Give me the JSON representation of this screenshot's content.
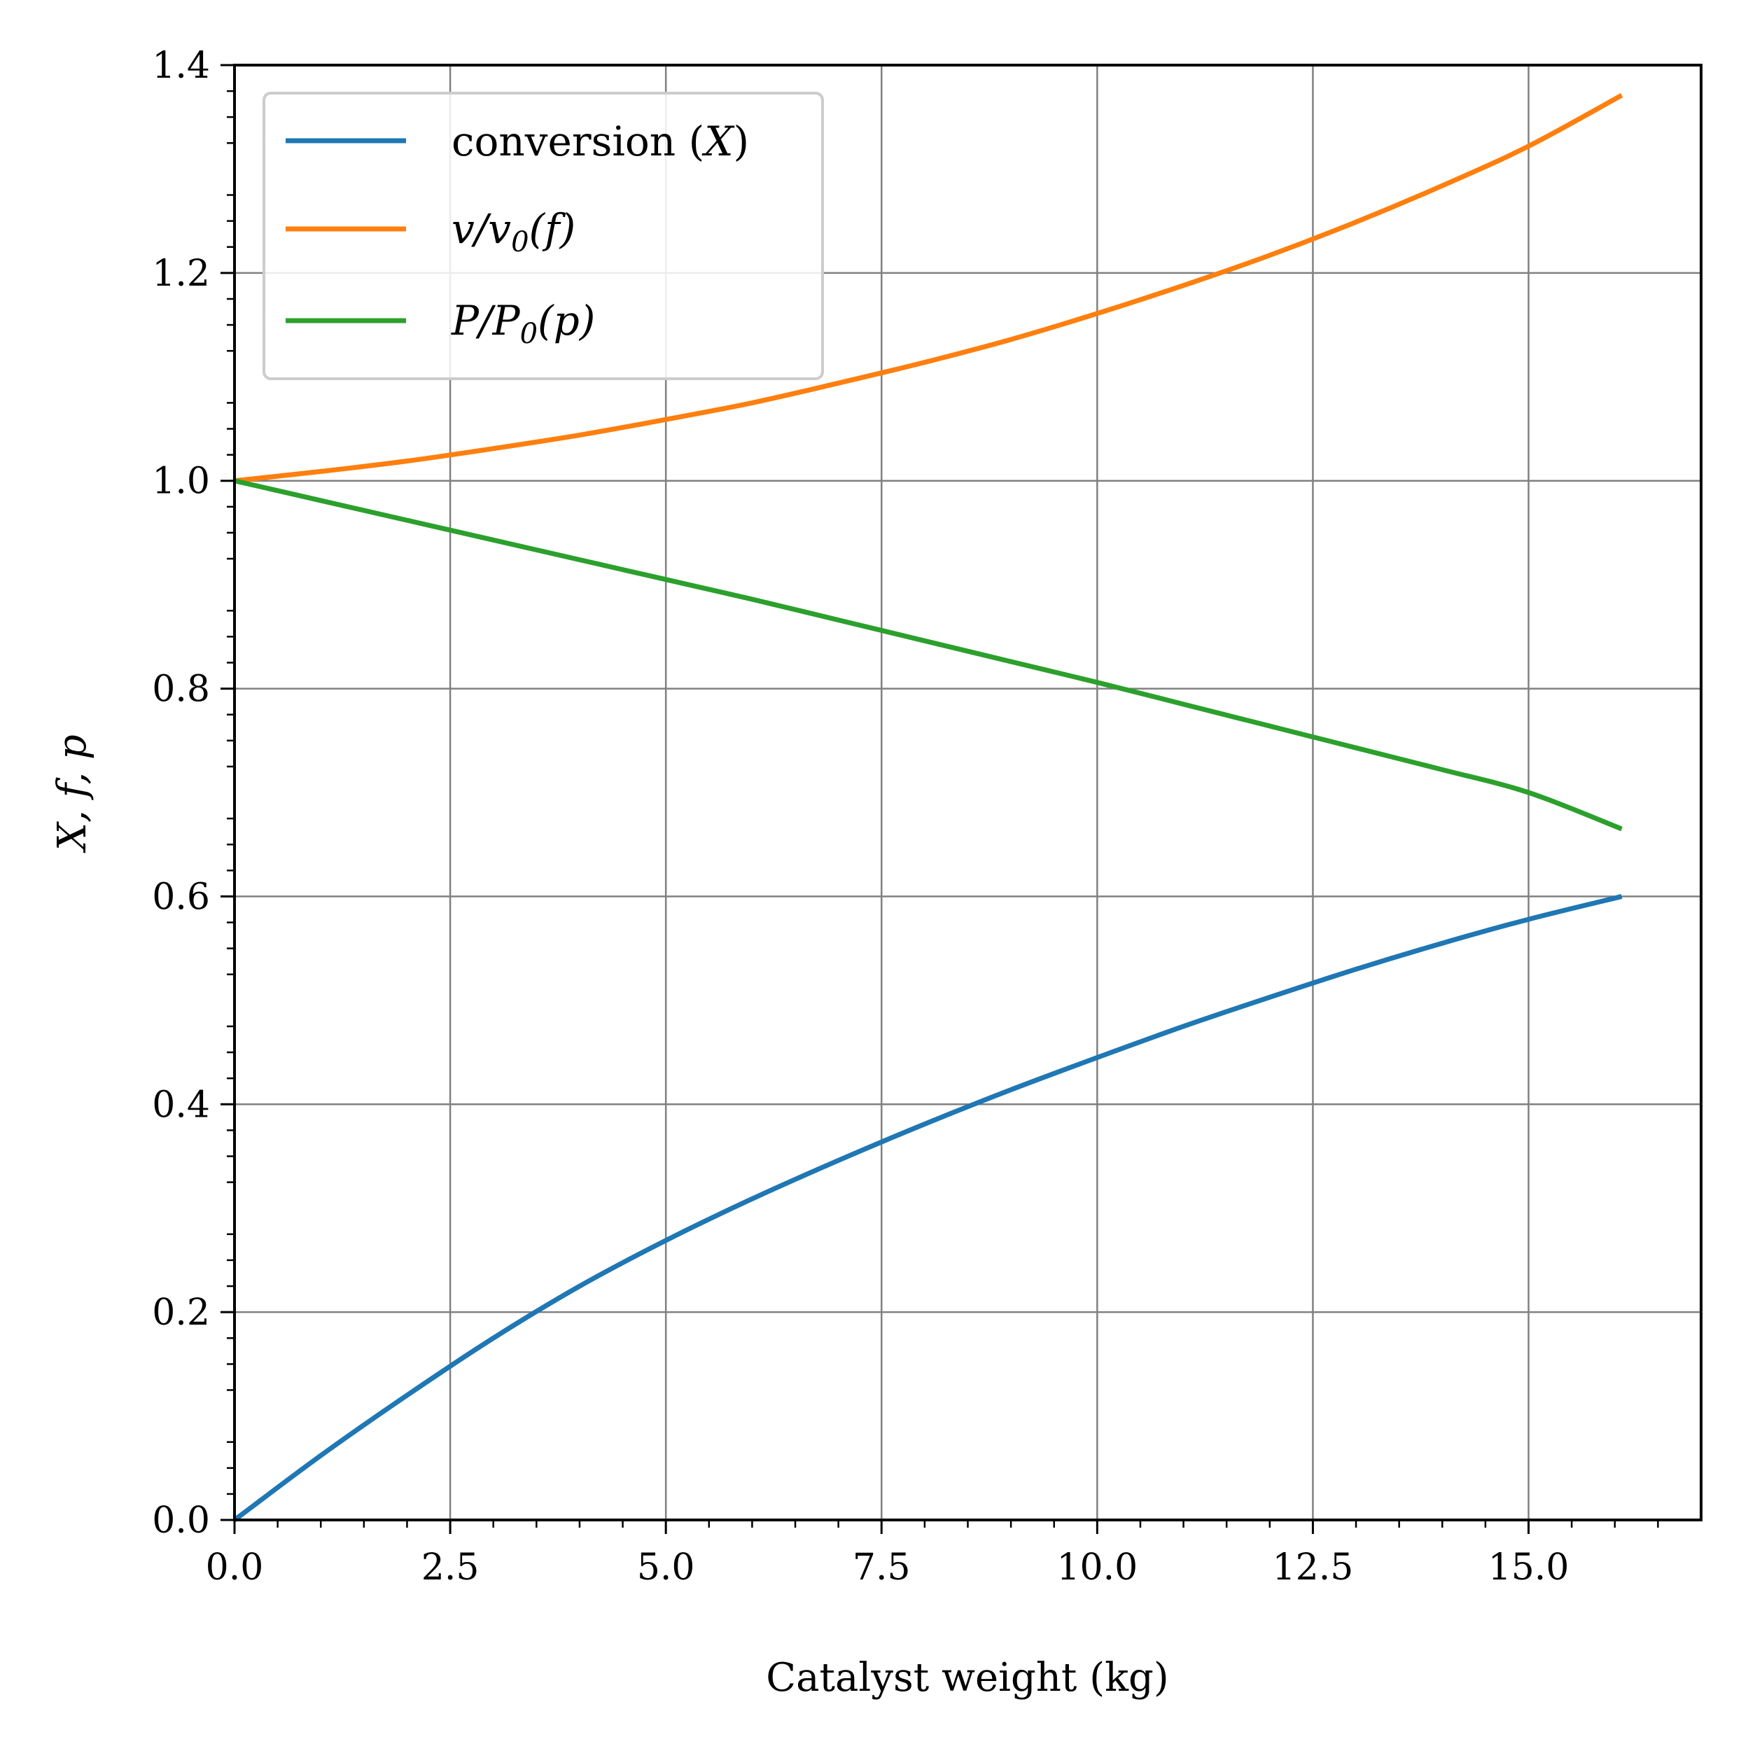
{
  "chart_data": {
    "type": "line",
    "xlabel": "Catalyst weight (kg)",
    "ylabel": "X, f, p",
    "xlim": [
      0,
      17
    ],
    "ylim": [
      0,
      1.4
    ],
    "xticks": [
      "0.0",
      "2.5",
      "5.0",
      "7.5",
      "10.0",
      "12.5",
      "15.0"
    ],
    "yticks": [
      "0.0",
      "0.2",
      "0.4",
      "0.6",
      "0.8",
      "1.0",
      "1.2",
      "1.4"
    ],
    "grid": true,
    "legend_position": "top-left",
    "x": [
      0,
      1,
      2,
      3,
      4,
      5,
      6,
      7,
      8,
      9,
      10,
      11,
      12,
      13,
      14,
      15,
      16.08
    ],
    "series": [
      {
        "name": "conversion (X)",
        "legend_main": "conversion (",
        "legend_var": "X",
        "legend_close": ")",
        "color": "#1f77b4",
        "values": [
          0.0,
          0.062,
          0.12,
          0.175,
          0.225,
          0.269,
          0.309,
          0.346,
          0.381,
          0.414,
          0.445,
          0.475,
          0.503,
          0.53,
          0.555,
          0.578,
          0.6
        ]
      },
      {
        "name": "v/v0(f)",
        "legend_a": "v/v",
        "legend_sub": "0",
        "legend_b": "(f)",
        "color": "#ff7f0e",
        "values": [
          1.0,
          1.009,
          1.019,
          1.031,
          1.044,
          1.059,
          1.075,
          1.094,
          1.114,
          1.136,
          1.161,
          1.188,
          1.217,
          1.249,
          1.284,
          1.322,
          1.371
        ]
      },
      {
        "name": "P/P0(p)",
        "legend_a": "P/P",
        "legend_sub": "0",
        "legend_b": "(p)",
        "color": "#2ca02c",
        "values": [
          1.0,
          0.981,
          0.962,
          0.943,
          0.924,
          0.905,
          0.886,
          0.866,
          0.846,
          0.826,
          0.806,
          0.785,
          0.764,
          0.743,
          0.722,
          0.7,
          0.665
        ]
      }
    ]
  }
}
